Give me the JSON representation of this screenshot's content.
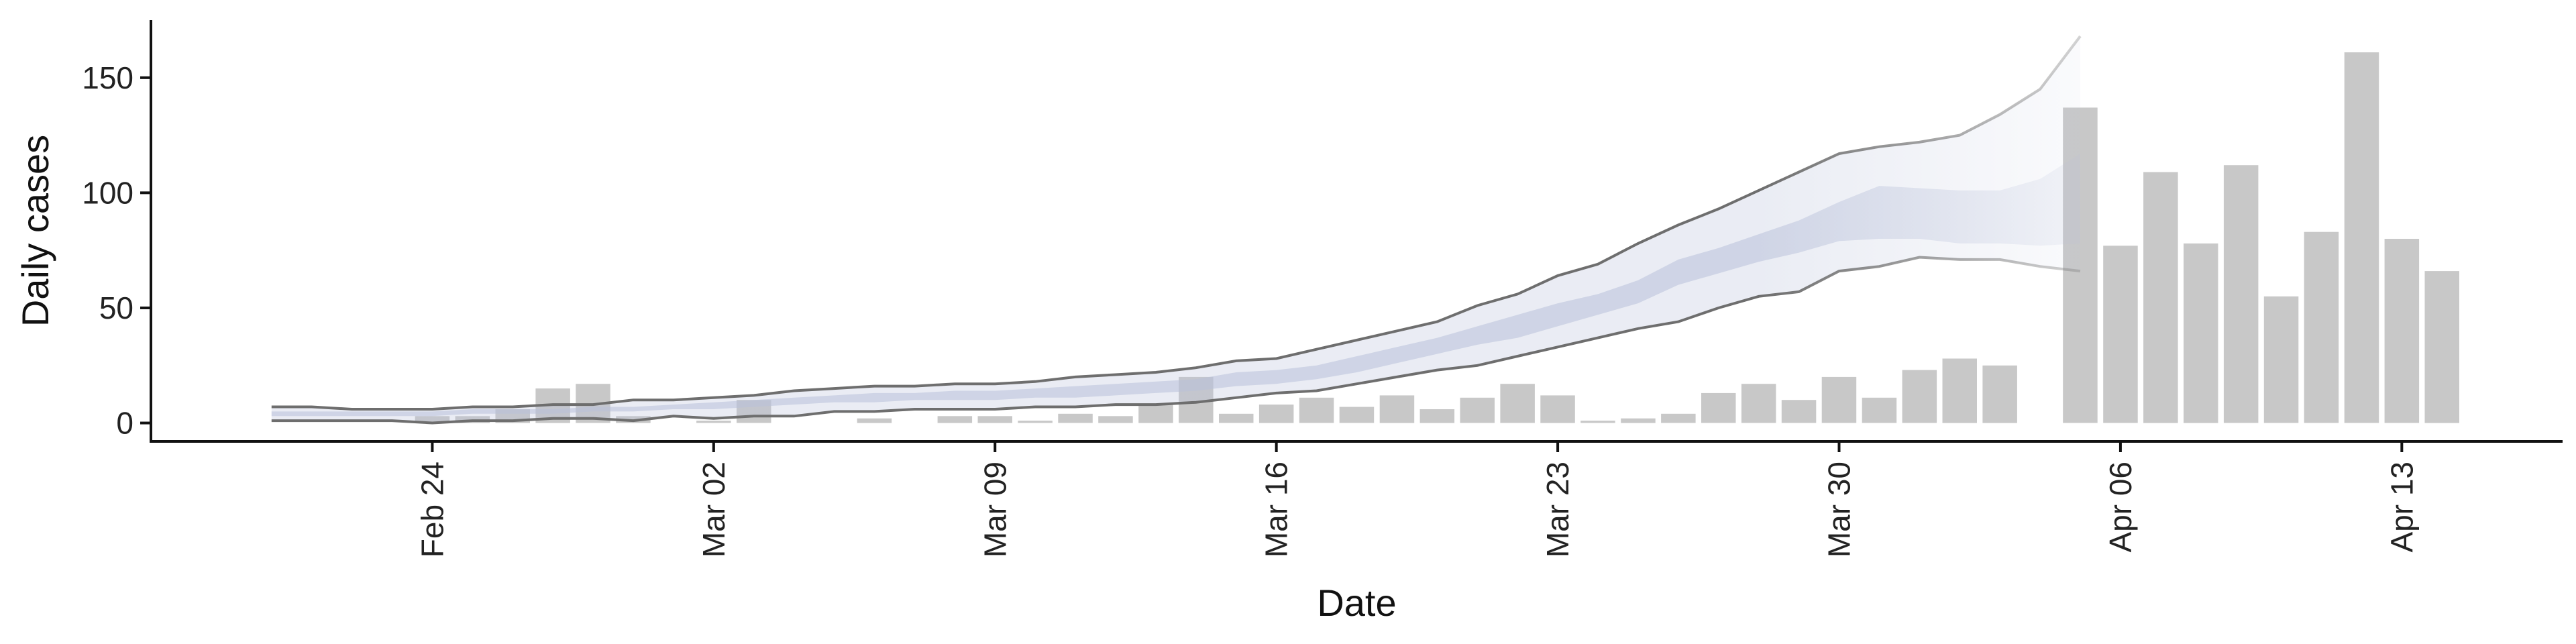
{
  "chart_data": {
    "type": "bar",
    "title": "",
    "xlabel": "Date",
    "ylabel": "Daily cases",
    "ylim": [
      -8,
      175
    ],
    "yticks": [
      0,
      50,
      100,
      150
    ],
    "xlim": [
      "2020-02-17",
      "2020-04-17"
    ],
    "x_tick_labels": [
      "Feb 24",
      "Mar 02",
      "Mar 09",
      "Mar 16",
      "Mar 23",
      "Mar 30",
      "Apr 06",
      "Apr 13"
    ],
    "x_tick_dates": [
      "2020-02-24",
      "2020-03-02",
      "2020-03-09",
      "2020-03-16",
      "2020-03-23",
      "2020-03-30",
      "2020-04-06",
      "2020-04-13"
    ],
    "grid": false,
    "bar_color": "#c8c8c8",
    "observed_cases": {
      "dates": [
        "2020-02-24",
        "2020-02-25",
        "2020-02-26",
        "2020-02-27",
        "2020-02-28",
        "2020-02-29",
        "2020-03-01",
        "2020-03-02",
        "2020-03-03",
        "2020-03-04",
        "2020-03-05",
        "2020-03-06",
        "2020-03-07",
        "2020-03-08",
        "2020-03-09",
        "2020-03-10",
        "2020-03-11",
        "2020-03-12",
        "2020-03-13",
        "2020-03-14",
        "2020-03-15",
        "2020-03-16",
        "2020-03-17",
        "2020-03-18",
        "2020-03-19",
        "2020-03-20",
        "2020-03-21",
        "2020-03-22",
        "2020-03-23",
        "2020-03-24",
        "2020-03-25",
        "2020-03-26",
        "2020-03-27",
        "2020-03-28",
        "2020-03-29",
        "2020-03-30",
        "2020-03-31",
        "2020-04-01",
        "2020-04-02",
        "2020-04-03",
        "2020-04-04",
        "2020-04-05",
        "2020-04-06",
        "2020-04-07",
        "2020-04-08",
        "2020-04-09",
        "2020-04-10",
        "2020-04-11",
        "2020-04-12",
        "2020-04-13",
        "2020-04-14"
      ],
      "values": [
        3,
        3,
        6,
        15,
        17,
        3,
        0,
        1,
        10,
        0,
        0,
        2,
        0,
        3,
        3,
        1,
        4,
        3,
        8,
        20,
        4,
        8,
        11,
        7,
        12,
        6,
        11,
        17,
        12,
        1,
        2,
        4,
        13,
        17,
        10,
        20,
        11,
        23,
        28,
        25,
        0,
        137,
        77,
        109,
        78,
        112,
        55,
        83,
        161,
        80,
        66
      ]
    },
    "nowcast": {
      "color": "#b9c1da",
      "dates": [
        "2020-02-20",
        "2020-02-21",
        "2020-02-22",
        "2020-02-23",
        "2020-02-24",
        "2020-02-25",
        "2020-02-26",
        "2020-02-27",
        "2020-02-28",
        "2020-02-29",
        "2020-03-01",
        "2020-03-02",
        "2020-03-03",
        "2020-03-04",
        "2020-03-05",
        "2020-03-06",
        "2020-03-07",
        "2020-03-08",
        "2020-03-09",
        "2020-03-10",
        "2020-03-11",
        "2020-03-12",
        "2020-03-13",
        "2020-03-14",
        "2020-03-15",
        "2020-03-16",
        "2020-03-17",
        "2020-03-18",
        "2020-03-19",
        "2020-03-20",
        "2020-03-21",
        "2020-03-22",
        "2020-03-23",
        "2020-03-24",
        "2020-03-25",
        "2020-03-26",
        "2020-03-27",
        "2020-03-28",
        "2020-03-29",
        "2020-03-30",
        "2020-03-31",
        "2020-04-01",
        "2020-04-02",
        "2020-04-03",
        "2020-04-04",
        "2020-04-05"
      ],
      "lower_90": [
        1,
        1,
        1,
        1,
        0,
        1,
        1,
        2,
        2,
        1,
        3,
        2,
        3,
        3,
        5,
        5,
        6,
        6,
        6,
        7,
        7,
        8,
        8,
        9,
        11,
        13,
        14,
        17,
        20,
        23,
        25,
        29,
        33,
        37,
        41,
        44,
        50,
        55,
        57,
        66,
        68,
        72,
        71,
        71,
        68,
        66
      ],
      "upper_90": [
        7,
        7,
        6,
        6,
        6,
        7,
        7,
        8,
        8,
        10,
        10,
        11,
        12,
        14,
        15,
        16,
        16,
        17,
        17,
        18,
        20,
        21,
        22,
        24,
        27,
        28,
        32,
        36,
        40,
        44,
        51,
        56,
        64,
        69,
        78,
        86,
        93,
        101,
        109,
        117,
        120,
        122,
        125,
        134,
        145,
        168
      ],
      "lower_50": [
        3,
        3,
        3,
        3,
        3,
        4,
        4,
        4,
        5,
        5,
        6,
        6,
        7,
        8,
        9,
        9,
        10,
        10,
        10,
        11,
        11,
        12,
        13,
        14,
        16,
        17,
        19,
        22,
        26,
        30,
        34,
        37,
        42,
        47,
        52,
        60,
        65,
        70,
        74,
        79,
        80,
        80,
        78,
        78,
        77,
        78
      ],
      "upper_50": [
        5,
        5,
        5,
        5,
        5,
        6,
        6,
        6,
        7,
        7,
        8,
        9,
        10,
        11,
        12,
        13,
        13,
        14,
        14,
        15,
        16,
        17,
        18,
        19,
        22,
        23,
        25,
        29,
        33,
        37,
        42,
        47,
        52,
        56,
        62,
        71,
        76,
        82,
        88,
        96,
        103,
        102,
        101,
        101,
        106,
        117
      ]
    }
  }
}
